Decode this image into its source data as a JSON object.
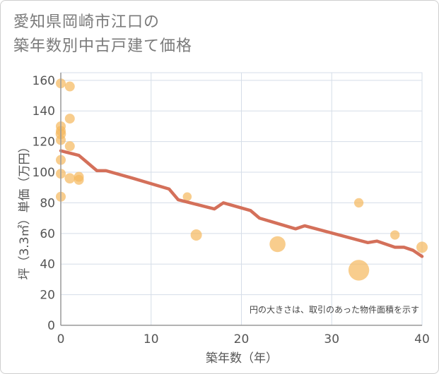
{
  "chart_data": {
    "type": "scatter",
    "title_lines": [
      "愛知県岡崎市江口の",
      "築年数別中古戸建て価格"
    ],
    "xlabel": "築年数（年）",
    "ylabel": "坪（3.3㎡）単価（万円）",
    "xlim": [
      0,
      40
    ],
    "ylim": [
      0,
      165
    ],
    "xticks": [
      0,
      10,
      20,
      30,
      40
    ],
    "yticks": [
      0,
      20,
      40,
      60,
      80,
      100,
      120,
      140,
      160
    ],
    "note": "円の大きさは、取引のあった物件面積を示す",
    "grid": true,
    "colors": {
      "scatter": "#f5b85c",
      "trend": "#d4705a",
      "grid": "#d5dde8",
      "axis": "#999999"
    },
    "scatter": [
      {
        "x": 0,
        "y": 158,
        "size": 1
      },
      {
        "x": 1,
        "y": 156,
        "size": 1
      },
      {
        "x": 0,
        "y": 130,
        "size": 1
      },
      {
        "x": 1,
        "y": 135,
        "size": 1
      },
      {
        "x": 0,
        "y": 127,
        "size": 1
      },
      {
        "x": 0,
        "y": 125,
        "size": 1.1
      },
      {
        "x": 0,
        "y": 121,
        "size": 1
      },
      {
        "x": 1,
        "y": 117,
        "size": 1
      },
      {
        "x": 0,
        "y": 108,
        "size": 1
      },
      {
        "x": 0,
        "y": 99,
        "size": 1
      },
      {
        "x": 1,
        "y": 96,
        "size": 1.1
      },
      {
        "x": 2,
        "y": 97,
        "size": 1
      },
      {
        "x": 2,
        "y": 95,
        "size": 1
      },
      {
        "x": 0,
        "y": 84,
        "size": 1
      },
      {
        "x": 14,
        "y": 84,
        "size": 0.8
      },
      {
        "x": 15,
        "y": 59,
        "size": 1.3
      },
      {
        "x": 24,
        "y": 53,
        "size": 2.6
      },
      {
        "x": 33,
        "y": 80,
        "size": 0.9
      },
      {
        "x": 33,
        "y": 36,
        "size": 4.4
      },
      {
        "x": 37,
        "y": 59,
        "size": 0.9
      },
      {
        "x": 40,
        "y": 51,
        "size": 1.3
      }
    ],
    "trend": {
      "x": [
        0,
        2,
        4,
        5,
        8,
        12,
        13,
        17,
        18,
        21,
        22,
        26,
        27,
        34,
        35,
        37,
        38,
        39,
        40
      ],
      "y": [
        114,
        111,
        101,
        101,
        96,
        89,
        82,
        76,
        80,
        75,
        70,
        63,
        65,
        54,
        55,
        51,
        51,
        49,
        45
      ]
    }
  }
}
